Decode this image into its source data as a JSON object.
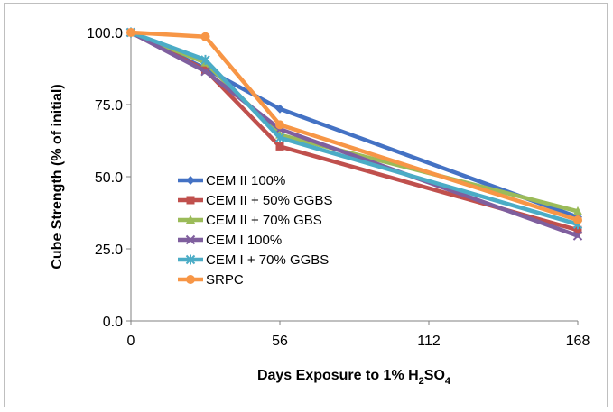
{
  "chart_data": {
    "type": "line",
    "title": "",
    "xlabel": {
      "prefix": "Days Exposure to 1% H",
      "sub1": "2",
      "mid": "SO",
      "sub2": "4"
    },
    "ylabel": "Cube Strength (% of initial)",
    "xlim": [
      0,
      168
    ],
    "ylim": [
      0,
      100
    ],
    "xticks": [
      0,
      56,
      112,
      168
    ],
    "xtick_labels": [
      "0",
      "56",
      "112",
      "168"
    ],
    "yticks": [
      0,
      25,
      50,
      75,
      100
    ],
    "ytick_labels": [
      "0.0",
      "25.0",
      "50.0",
      "75.0",
      "100.0"
    ],
    "grid": false,
    "legend_position": "left",
    "series": [
      {
        "name": "CEM II 100%",
        "color": "#4472C4",
        "marker": "diamond",
        "x": [
          0,
          28,
          56,
          168
        ],
        "y": [
          100,
          87.5,
          73.5,
          36.0
        ]
      },
      {
        "name": "CEM II + 50% GGBS",
        "color": "#C0504D",
        "marker": "square",
        "x": [
          0,
          28,
          56,
          168
        ],
        "y": [
          100,
          87.0,
          60.5,
          31.5
        ]
      },
      {
        "name": "CEM II + 70% GBS",
        "color": "#9BBB59",
        "marker": "triangle",
        "x": [
          0,
          28,
          56,
          168
        ],
        "y": [
          100,
          89.5,
          64.5,
          38.0
        ]
      },
      {
        "name": "CEM I 100%",
        "color": "#7F5F9E",
        "marker": "x",
        "x": [
          0,
          28,
          56,
          168
        ],
        "y": [
          100,
          86.5,
          66.5,
          29.5
        ]
      },
      {
        "name": "CEM I + 70% GGBS",
        "color": "#4BACC6",
        "marker": "star",
        "x": [
          0,
          28,
          56,
          168
        ],
        "y": [
          100,
          90.5,
          63.5,
          33.5
        ]
      },
      {
        "name": "SRPC",
        "color": "#F79646",
        "marker": "circle",
        "x": [
          0,
          28,
          56,
          168
        ],
        "y": [
          100,
          98.5,
          68.0,
          35.0
        ]
      }
    ]
  }
}
